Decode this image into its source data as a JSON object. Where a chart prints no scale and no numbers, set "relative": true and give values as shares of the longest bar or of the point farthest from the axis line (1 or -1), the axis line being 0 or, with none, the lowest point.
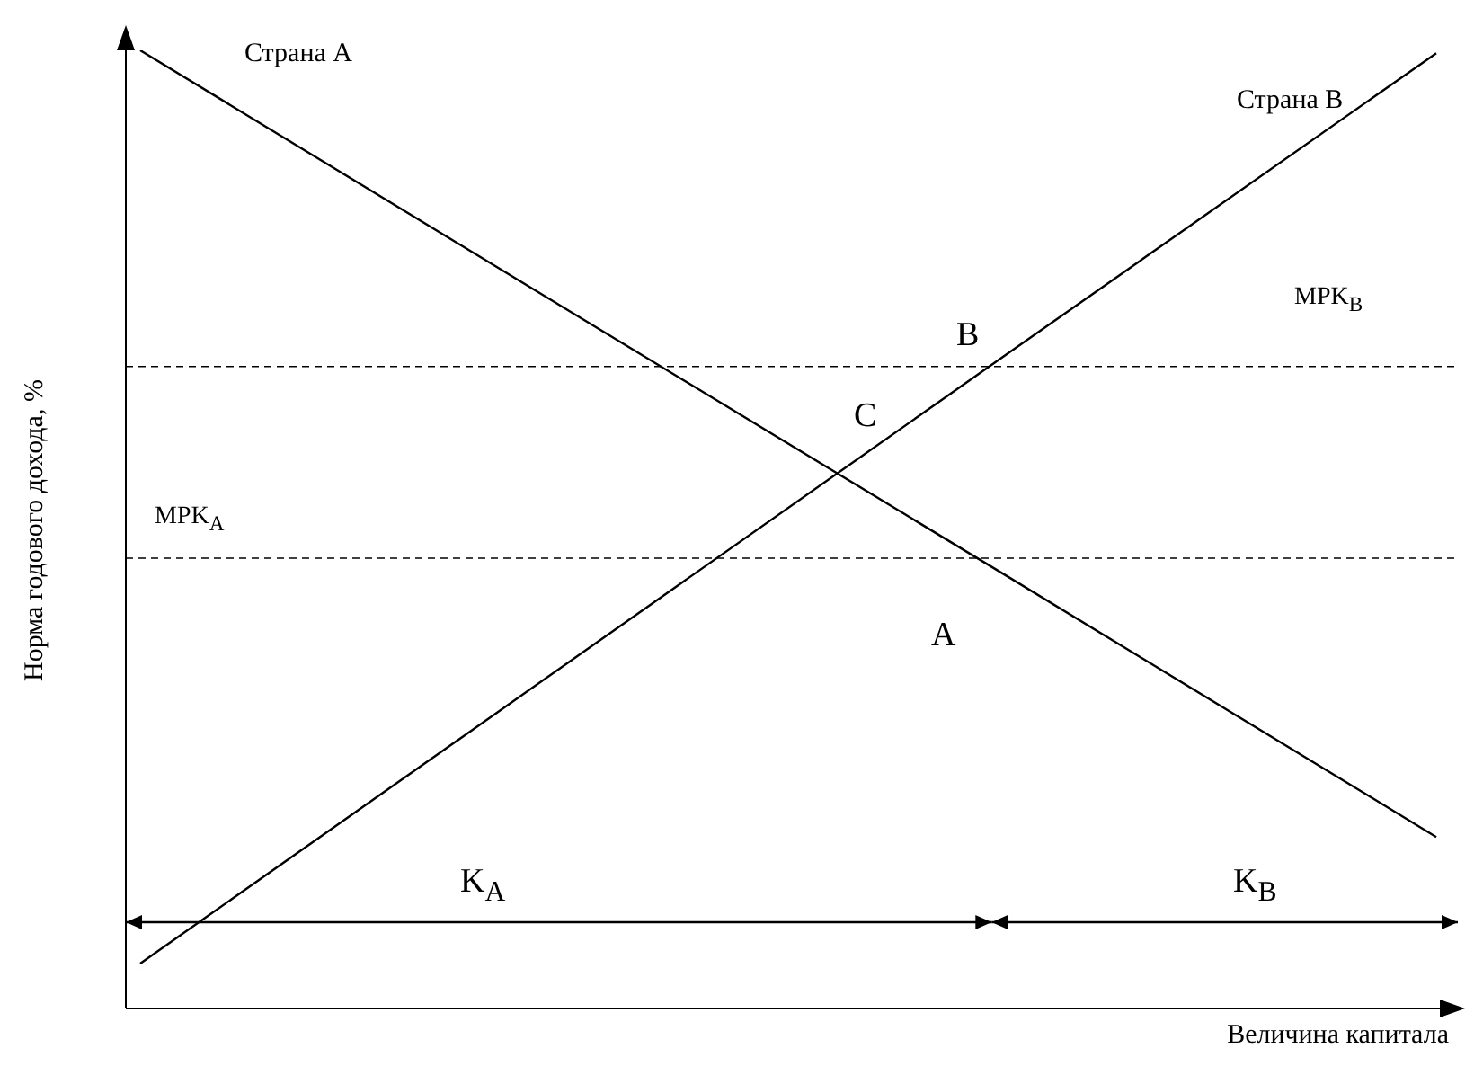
{
  "chart_data": {
    "type": "line",
    "relative": true,
    "ylabel": "Норма годового дохода, %",
    "xlabel": "Величина капитала",
    "categories": [
      null,
      null,
      null,
      null
    ],
    "series": [
      {
        "name": "Страна А",
        "color": "#000000",
        "values": [
          1,
          0.726,
          0.453,
          0.179
        ]
      },
      {
        "name": "Страна В",
        "color": "#000000",
        "values": [
          0.047,
          0.364,
          0.681,
          0.997
        ]
      }
    ],
    "ref_lines": [
      {
        "axis": "y",
        "value": 0.47,
        "label": "MPK$_{A}$",
        "line_style": "dashed"
      },
      {
        "axis": "y",
        "value": 0.67,
        "label": "MPK$_{B}$",
        "line_style": "dashed"
      }
    ],
    "annotations": [
      "A",
      "B",
      "C",
      "K$_{A}$",
      "K$_{B}$"
    ],
    "grid": false,
    "legend": false,
    "marker": "none",
    "line_style": "solid"
  }
}
